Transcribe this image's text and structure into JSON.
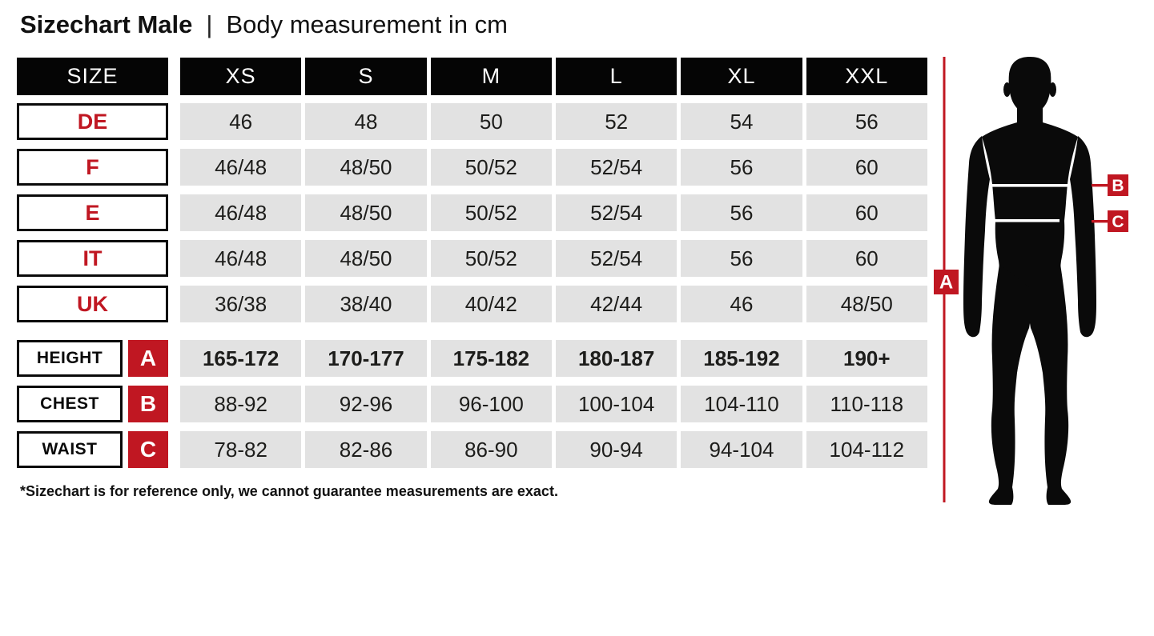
{
  "page": {
    "title_bold": "Sizechart Male",
    "title_separator": "|",
    "title_regular": "Body measurement in cm",
    "footnote": "*Sizechart is for reference only, we cannot guarantee measurements are exact."
  },
  "colors": {
    "accent_red": "#c01722",
    "cell_gray": "#e2e2e2",
    "header_black": "#050505",
    "text_dark": "#1d1d1b"
  },
  "table": {
    "header": [
      "SIZE",
      "XS",
      "S",
      "M",
      "L",
      "XL",
      "XXL"
    ],
    "size_rows": [
      {
        "label": "DE",
        "values": [
          "46",
          "48",
          "50",
          "52",
          "54",
          "56"
        ]
      },
      {
        "label": "F",
        "values": [
          "46/48",
          "48/50",
          "50/52",
          "52/54",
          "56",
          "60"
        ]
      },
      {
        "label": "E",
        "values": [
          "46/48",
          "48/50",
          "50/52",
          "52/54",
          "56",
          "60"
        ]
      },
      {
        "label": "IT",
        "values": [
          "46/48",
          "48/50",
          "50/52",
          "52/54",
          "56",
          "60"
        ]
      },
      {
        "label": "UK",
        "values": [
          "36/38",
          "38/40",
          "40/42",
          "42/44",
          "46",
          "48/50"
        ]
      }
    ],
    "measurement_rows": [
      {
        "label": "HEIGHT",
        "marker": "A",
        "bold": true,
        "values": [
          "165-172",
          "170-177",
          "175-182",
          "180-187",
          "185-192",
          "190+"
        ]
      },
      {
        "label": "CHEST",
        "marker": "B",
        "bold": false,
        "values": [
          "88-92",
          "92-96",
          "96-100",
          "100-104",
          "104-110",
          "110-118"
        ]
      },
      {
        "label": "WAIST",
        "marker": "C",
        "bold": false,
        "values": [
          "78-82",
          "82-86",
          "86-90",
          "90-94",
          "94-104",
          "104-112"
        ]
      }
    ]
  },
  "figure": {
    "markers": {
      "a": "A",
      "b": "B",
      "c": "C"
    }
  },
  "chart_data": {
    "type": "table",
    "title": "Sizechart Male | Body measurement in cm",
    "columns": [
      "SIZE",
      "XS",
      "S",
      "M",
      "L",
      "XL",
      "XXL"
    ],
    "rows": [
      [
        "DE",
        "46",
        "48",
        "50",
        "52",
        "54",
        "56"
      ],
      [
        "F",
        "46/48",
        "48/50",
        "50/52",
        "52/54",
        "56",
        "60"
      ],
      [
        "E",
        "46/48",
        "48/50",
        "50/52",
        "52/54",
        "56",
        "60"
      ],
      [
        "IT",
        "46/48",
        "48/50",
        "50/52",
        "52/54",
        "56",
        "60"
      ],
      [
        "UK",
        "36/38",
        "38/40",
        "40/42",
        "42/44",
        "46",
        "48/50"
      ],
      [
        "HEIGHT (A)",
        "165-172",
        "170-177",
        "175-182",
        "180-187",
        "185-192",
        "190+"
      ],
      [
        "CHEST (B)",
        "88-92",
        "92-96",
        "96-100",
        "100-104",
        "104-110",
        "110-118"
      ],
      [
        "WAIST (C)",
        "78-82",
        "82-86",
        "86-90",
        "90-94",
        "94-104",
        "104-112"
      ]
    ],
    "units": "cm",
    "footnote": "*Sizechart is for reference only, we cannot guarantee measurements are exact."
  }
}
